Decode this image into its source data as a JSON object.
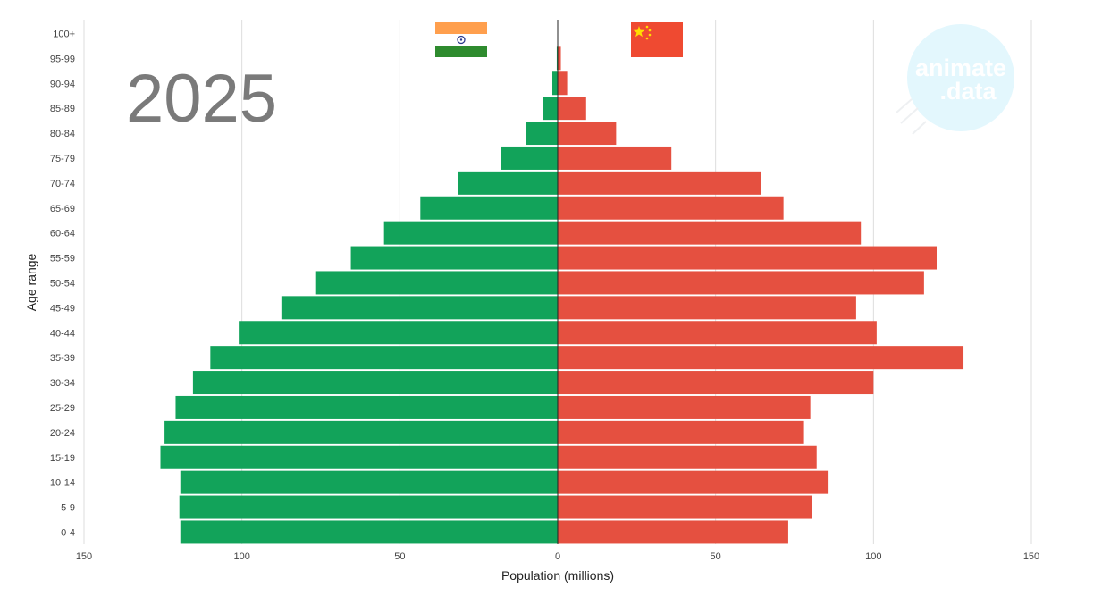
{
  "chart_data": {
    "type": "bar",
    "orientation": "horizontal-diverging",
    "year": "2025",
    "xlabel": "Population (millions)",
    "ylabel": "Age range",
    "xlim": [
      -150,
      150
    ],
    "xticks": [
      {
        "value": -150,
        "label": "150"
      },
      {
        "value": -100,
        "label": "100"
      },
      {
        "value": -50,
        "label": "50"
      },
      {
        "value": 0,
        "label": "0"
      },
      {
        "value": 50,
        "label": "50"
      },
      {
        "value": 100,
        "label": "100"
      },
      {
        "value": 150,
        "label": "150"
      }
    ],
    "grid": true,
    "categories": [
      "100+",
      "95-99",
      "90-94",
      "85-89",
      "80-84",
      "75-79",
      "70-74",
      "65-69",
      "60-64",
      "55-59",
      "50-54",
      "45-49",
      "40-44",
      "35-39",
      "30-34",
      "25-29",
      "20-24",
      "15-19",
      "10-14",
      "5-9",
      "0-4"
    ],
    "series": [
      {
        "flag": "india-flag",
        "side": "left",
        "color": "#12a35a",
        "values": [
          0.05,
          0.3,
          1.7,
          4.7,
          10.0,
          18.0,
          31.5,
          43.5,
          55.0,
          65.5,
          76.5,
          87.5,
          101.0,
          110.0,
          115.5,
          121.0,
          124.5,
          125.8,
          119.5,
          119.8,
          119.5
        ]
      },
      {
        "flag": "china-flag",
        "side": "right",
        "color": "#e55040",
        "values": [
          0.1,
          1.0,
          3.0,
          9.0,
          18.5,
          36.0,
          64.5,
          71.5,
          96.0,
          120.0,
          116.0,
          94.5,
          101.0,
          128.5,
          100.0,
          80.0,
          78.0,
          82.0,
          85.5,
          80.5,
          73.0
        ]
      }
    ]
  },
  "colors": {
    "india_saffron": "#ff9f4d",
    "india_white": "#ffffff",
    "india_green": "#2e8b2e",
    "india_chakra": "#2c3a8c",
    "china_red": "#ef4a31",
    "china_star": "#ffde00",
    "grid": "#dddddd",
    "center_line": "#222222",
    "watermark_circle": "#e3f7fd"
  },
  "watermark": {
    "line1": "animate",
    "line2": ".data"
  }
}
